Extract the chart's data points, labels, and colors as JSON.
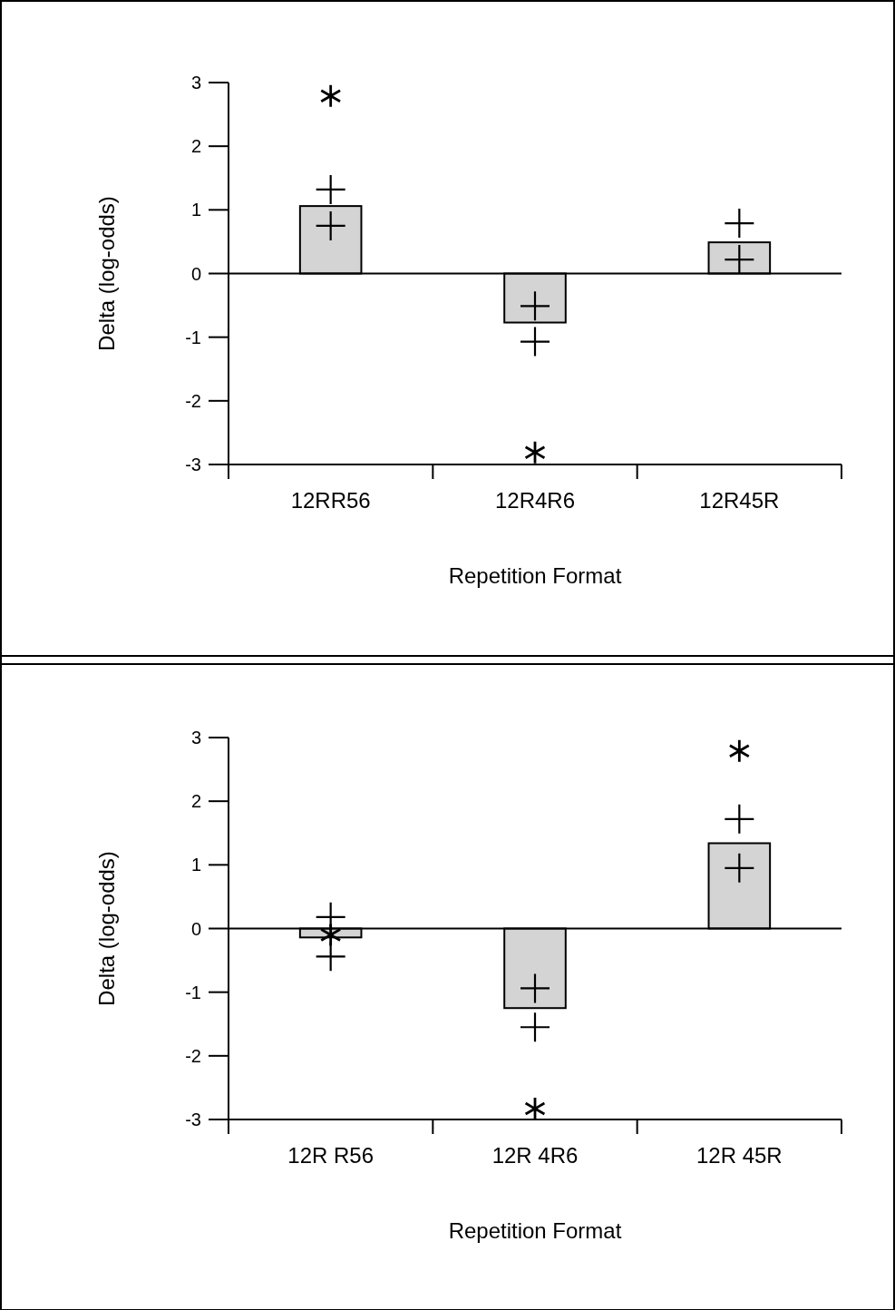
{
  "chart_data": [
    {
      "type": "bar",
      "xlabel": "Repetition Format",
      "ylabel": "Delta (log-odds)",
      "categories": [
        "12RR56",
        "12R4R6",
        "12R45R"
      ],
      "ylim": [
        -3,
        3
      ],
      "yticks": [
        -3,
        -2,
        -1,
        0,
        1,
        2,
        3
      ],
      "series": [
        {
          "color": "#d4d4d4",
          "values": [
            1.06,
            -0.77,
            0.49
          ]
        },
        {
          "type": "scatter",
          "marker": "cross",
          "color": "#000000",
          "x": [
            "12RR56",
            "12R4R6",
            "12R45R"
          ],
          "values": [
            1.32,
            -0.51,
            0.79
          ]
        },
        {
          "type": "scatter",
          "marker": "cross",
          "color": "#000000",
          "x": [
            "12RR56",
            "12R4R6",
            "12R45R"
          ],
          "values": [
            0.75,
            -1.07,
            0.22
          ]
        },
        {
          "type": "scatter",
          "marker": "star",
          "color": "#000000",
          "x": [
            "12RR56",
            "12R4R6"
          ],
          "values": [
            2.79,
            -2.81
          ]
        }
      ]
    },
    {
      "type": "bar",
      "xlabel": "Repetition Format",
      "ylabel": "Delta (log-odds)",
      "categories": [
        "12R R56",
        "12R 4R6",
        "12R 45R"
      ],
      "ylim": [
        -3,
        3
      ],
      "yticks": [
        -3,
        -2,
        -1,
        0,
        1,
        2,
        3
      ],
      "series": [
        {
          "color": "#d4d4d4",
          "values": [
            -0.14,
            -1.25,
            1.34
          ]
        },
        {
          "type": "scatter",
          "marker": "cross",
          "color": "#000000",
          "x": [
            "12R R56",
            "12R 4R6",
            "12R 45R"
          ],
          "values": [
            0.18,
            -0.94,
            1.72
          ]
        },
        {
          "type": "scatter",
          "marker": "cross",
          "color": "#000000",
          "x": [
            "12R R56",
            "12R 4R6",
            "12R 45R"
          ],
          "values": [
            -0.44,
            -1.55,
            0.95
          ]
        },
        {
          "type": "scatter",
          "marker": "star",
          "color": "#000000",
          "x": [
            "12R R56",
            "12R 4R6",
            "12R 45R"
          ],
          "values": [
            -0.1,
            -2.83,
            2.79
          ]
        }
      ]
    }
  ]
}
